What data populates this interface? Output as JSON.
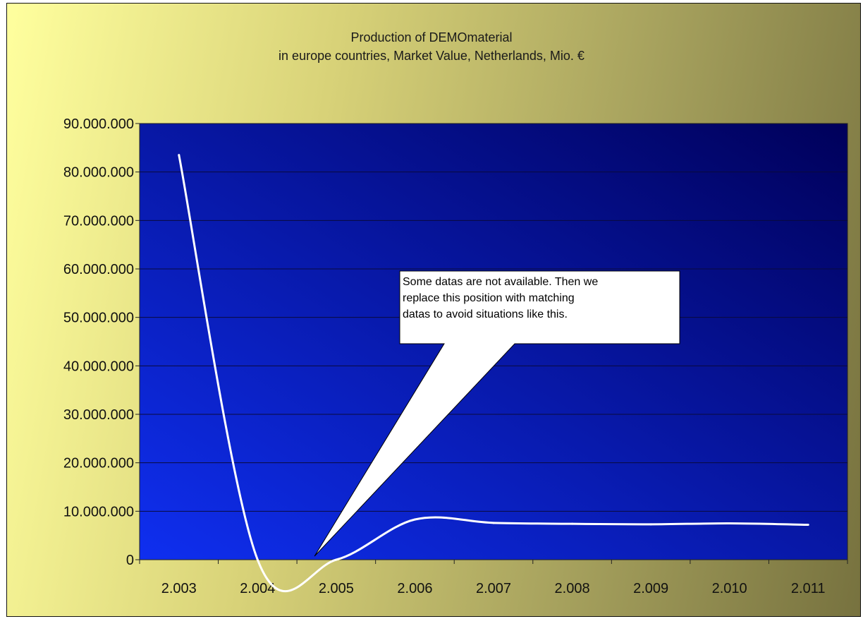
{
  "chart_data": {
    "type": "line",
    "title_lines": [
      "Production of DEMOmaterial",
      "in europe countries, Market Value, Netherlands, Mio. €"
    ],
    "categories": [
      "2.003",
      "2.004",
      "2.005",
      "2.006",
      "2.007",
      "2.008",
      "2.009",
      "2.010",
      "2.011"
    ],
    "series": [
      {
        "values": [
          83500000,
          0,
          0,
          8300000,
          7600000,
          7400000,
          7300000,
          7500000,
          7200000
        ],
        "color": "#ffffff"
      }
    ],
    "ylim": [
      0,
      90000000
    ],
    "yticks": [
      0,
      10000000,
      20000000,
      30000000,
      40000000,
      50000000,
      60000000,
      70000000,
      80000000,
      90000000
    ],
    "ytick_labels": [
      "0",
      "10.000.000",
      "20.000.000",
      "30.000.000",
      "40.000.000",
      "50.000.000",
      "60.000.000",
      "70.000.000",
      "80.000.000",
      "90.000.000"
    ],
    "grid": true,
    "plot_background": [
      "#0f2ff0",
      "#00005a"
    ],
    "annotation": {
      "lines": [
        "Some datas are not available. Then we",
        "replace this position with matching",
        "datas to avoid situations like this."
      ],
      "points_to_category": "2.005",
      "points_to_value": 0
    }
  }
}
